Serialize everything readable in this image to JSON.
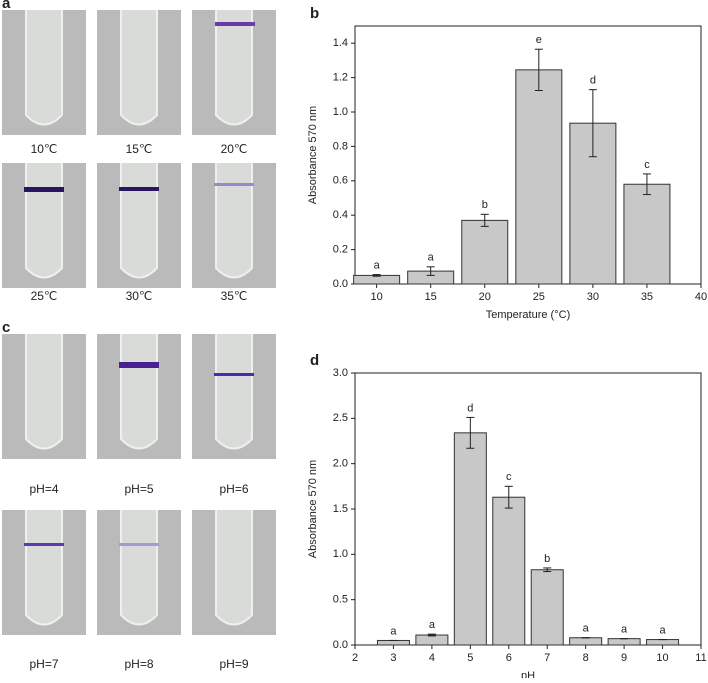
{
  "photo_panels": [
    {
      "label": "a",
      "captions": [
        "10℃",
        "15℃",
        "20℃",
        "25℃",
        "30℃",
        "35℃"
      ]
    },
    {
      "label": "c",
      "captions": [
        "pH=4",
        "pH=5",
        "pH=6",
        "pH=7",
        "pH=8",
        "pH=9"
      ]
    }
  ],
  "chart_data": [
    {
      "type": "bar",
      "panel_label": "b",
      "x_label": "Temperature (°C)",
      "y_label": "Absorbance 570 nm",
      "x": [
        10,
        15,
        20,
        25,
        30,
        35
      ],
      "values": [
        0.05,
        0.075,
        0.37,
        1.245,
        0.935,
        0.58
      ],
      "errors": [
        0.005,
        0.025,
        0.035,
        0.12,
        0.195,
        0.06
      ],
      "annotations": [
        "a",
        "a",
        "b",
        "e",
        "d",
        "c"
      ],
      "color": "#c8c8c8",
      "xlim": [
        8,
        40
      ],
      "xticks": [
        10,
        15,
        20,
        25,
        30,
        35,
        40
      ],
      "ylim": [
        0,
        1.5
      ],
      "yticks": [
        {
          "value": 0,
          "label": "0.0"
        },
        0.2,
        0.4,
        0.6,
        0.8,
        {
          "value": 1,
          "label": "1.0"
        },
        1.2,
        1.4
      ]
    },
    {
      "type": "bar",
      "panel_label": "d",
      "x_label": "pH",
      "y_label": "Absorbance 570 nm",
      "x": [
        3,
        4,
        5,
        6,
        7,
        8,
        9,
        10
      ],
      "values": [
        0.05,
        0.11,
        2.34,
        1.63,
        0.83,
        0.08,
        0.07,
        0.06
      ],
      "errors": [
        0,
        0.01,
        0.17,
        0.12,
        0.02,
        0,
        0,
        0
      ],
      "annotations": [
        "a",
        "a",
        "d",
        "c",
        "b",
        "a",
        "a",
        "a"
      ],
      "color": "#c8c8c8",
      "xlim": [
        2,
        11
      ],
      "xticks": [
        2,
        3,
        4,
        5,
        6,
        7,
        8,
        9,
        10,
        11
      ],
      "ylim": [
        0,
        3
      ],
      "yticks": [
        {
          "value": 0,
          "label": "0.0"
        },
        0.5,
        {
          "value": 1,
          "label": "1.0"
        },
        1.5,
        {
          "value": 2,
          "label": "2.0"
        },
        2.5,
        {
          "value": 3,
          "label": "3.0"
        }
      ]
    }
  ]
}
